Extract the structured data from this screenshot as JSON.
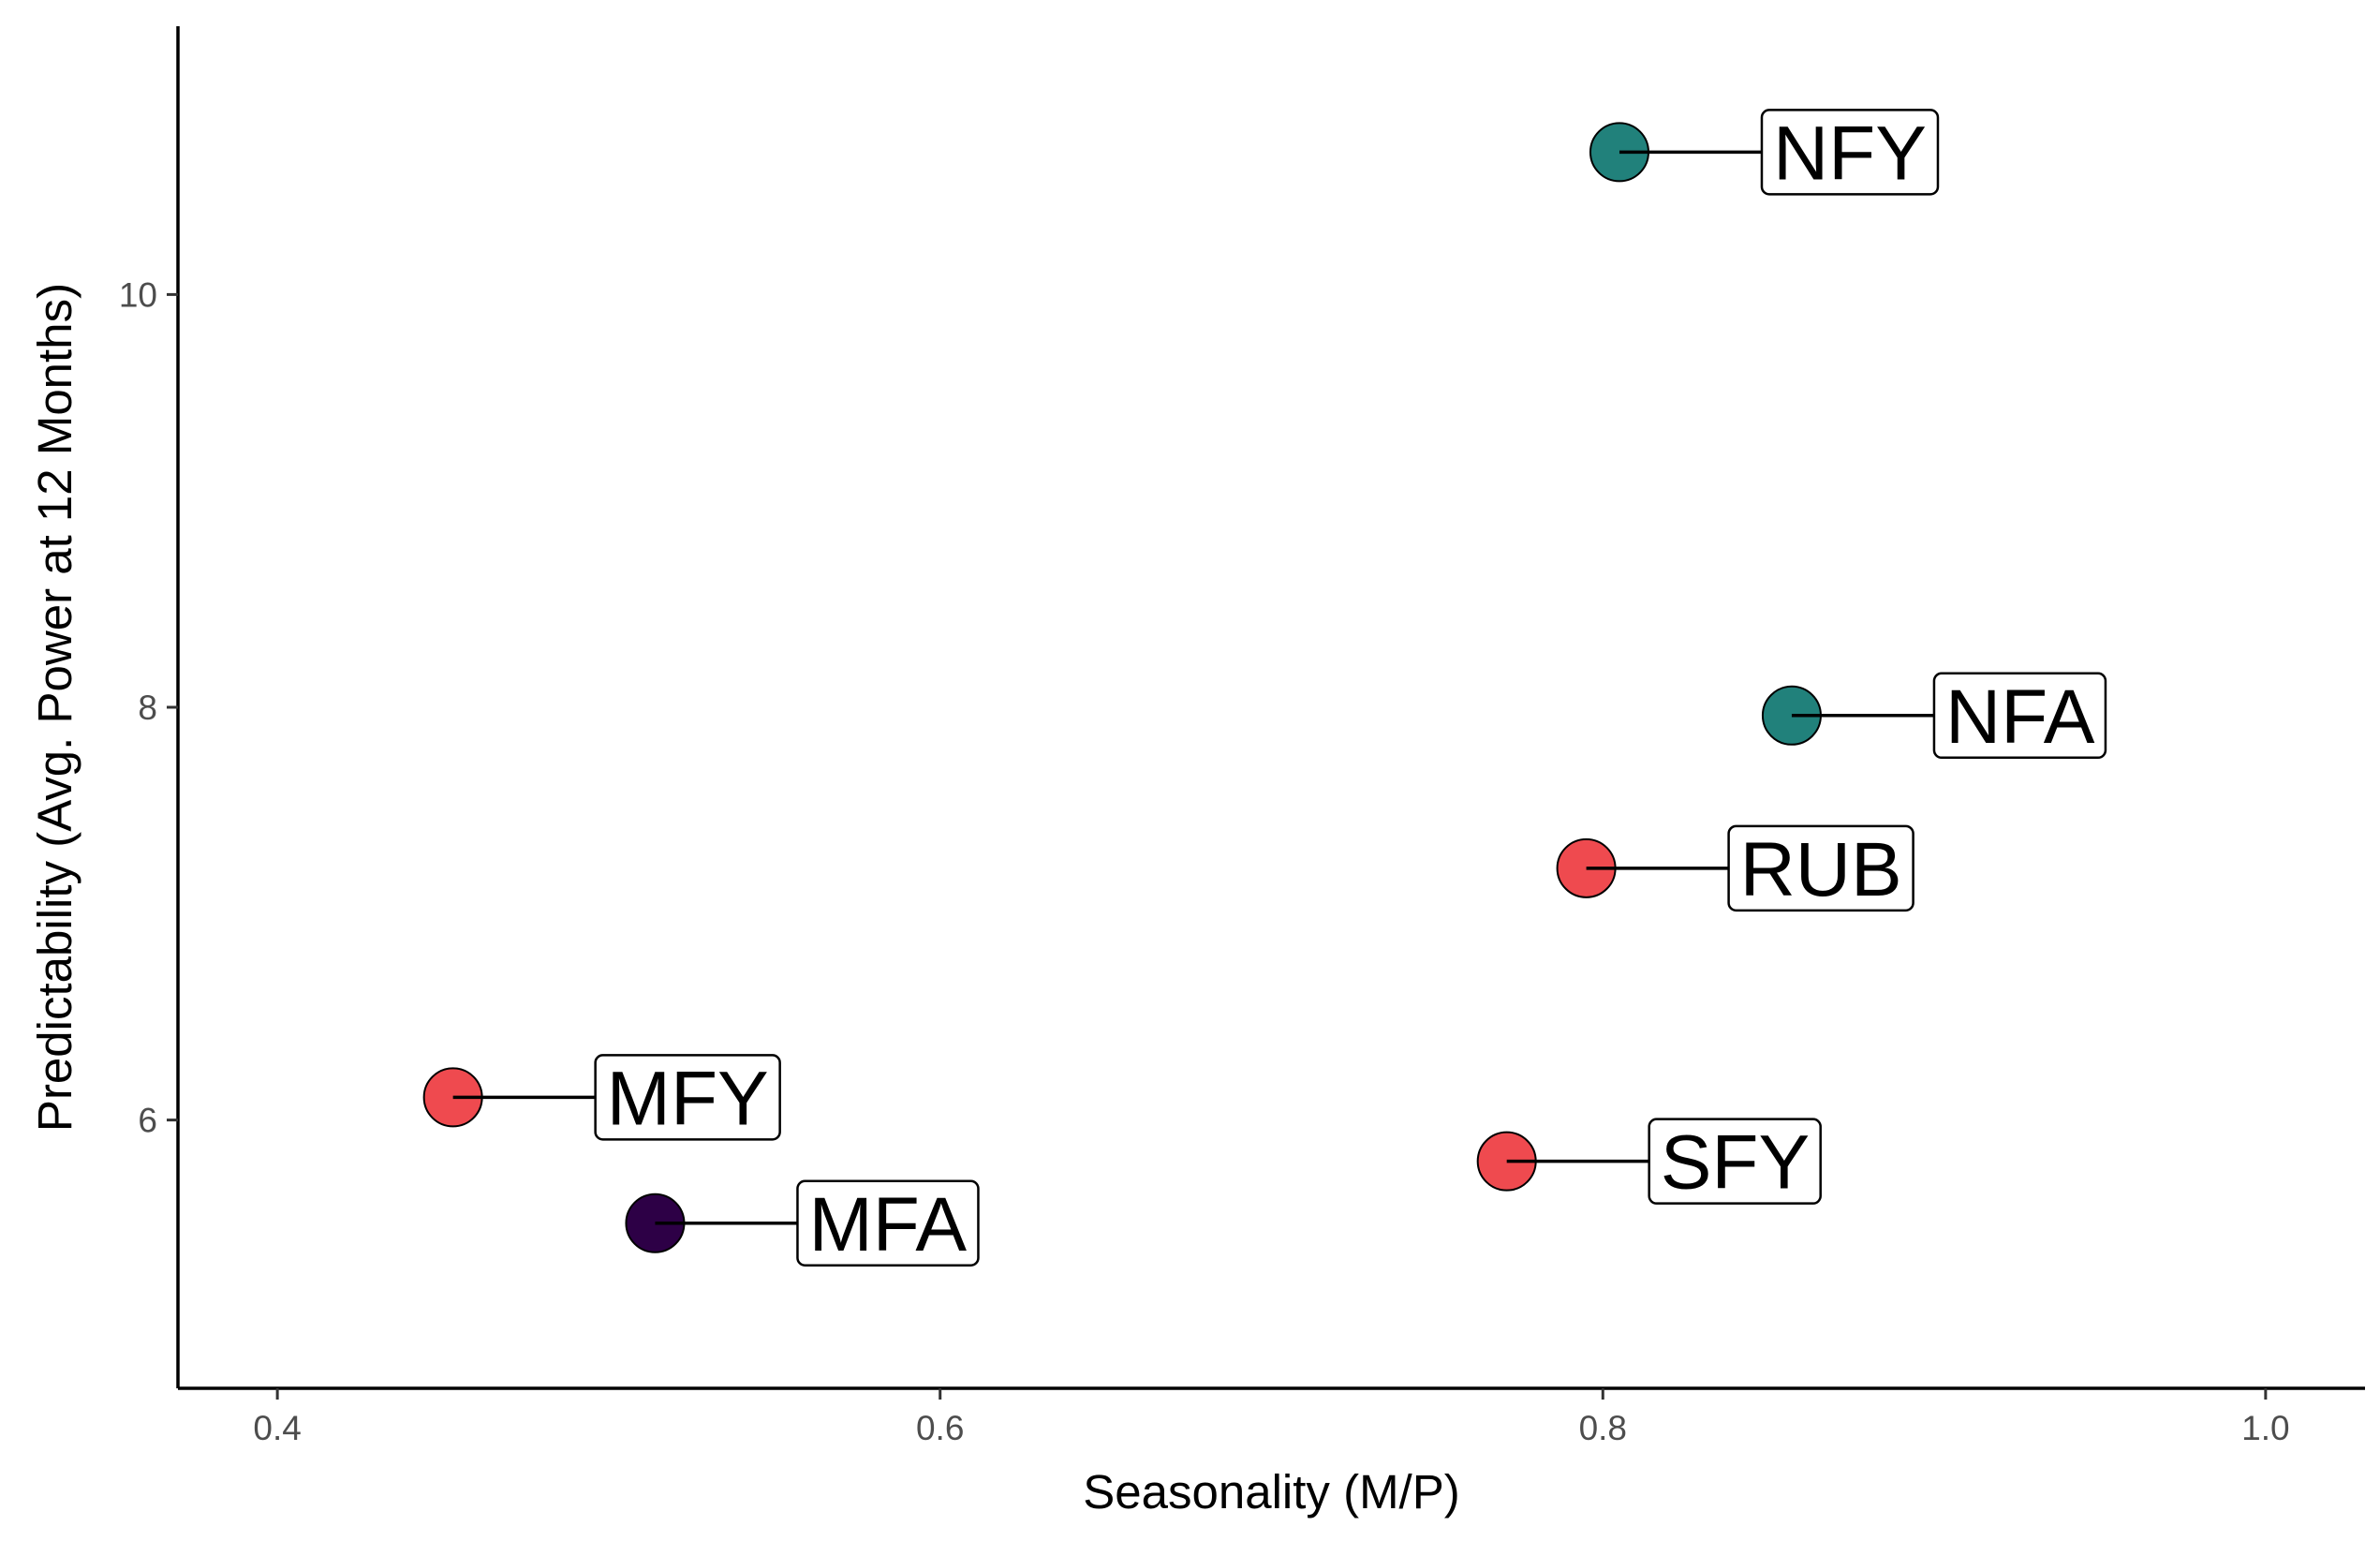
{
  "chart_data": {
    "type": "scatter",
    "xlabel": "Seasonality (M/P)",
    "ylabel": "Predictability (Avg. Power at 12 Months)",
    "xlim": [
      0.37,
      1.03
    ],
    "ylim": [
      4.7,
      11.3
    ],
    "x_ticks": [
      {
        "value": 0.4,
        "label": "0.4"
      },
      {
        "value": 0.6,
        "label": "0.6"
      },
      {
        "value": 0.8,
        "label": "0.8"
      },
      {
        "value": 1.0,
        "label": "1.0"
      }
    ],
    "y_ticks": [
      {
        "value": 6,
        "label": "6"
      },
      {
        "value": 8,
        "label": "8"
      },
      {
        "value": 10,
        "label": "10"
      }
    ],
    "points": [
      {
        "label": "NFY",
        "x": 0.805,
        "y": 10.69,
        "color": "#21817b"
      },
      {
        "label": "NFA",
        "x": 0.857,
        "y": 7.96,
        "color": "#21817b"
      },
      {
        "label": "RUB",
        "x": 0.795,
        "y": 7.22,
        "color": "#ef4a4f"
      },
      {
        "label": "MFY",
        "x": 0.453,
        "y": 6.11,
        "color": "#ef4a4f"
      },
      {
        "label": "SFY",
        "x": 0.771,
        "y": 5.8,
        "color": "#ef4a4f"
      },
      {
        "label": "MFA",
        "x": 0.514,
        "y": 5.5,
        "color": "#2d0046"
      }
    ],
    "grid": false,
    "legend": "none"
  }
}
